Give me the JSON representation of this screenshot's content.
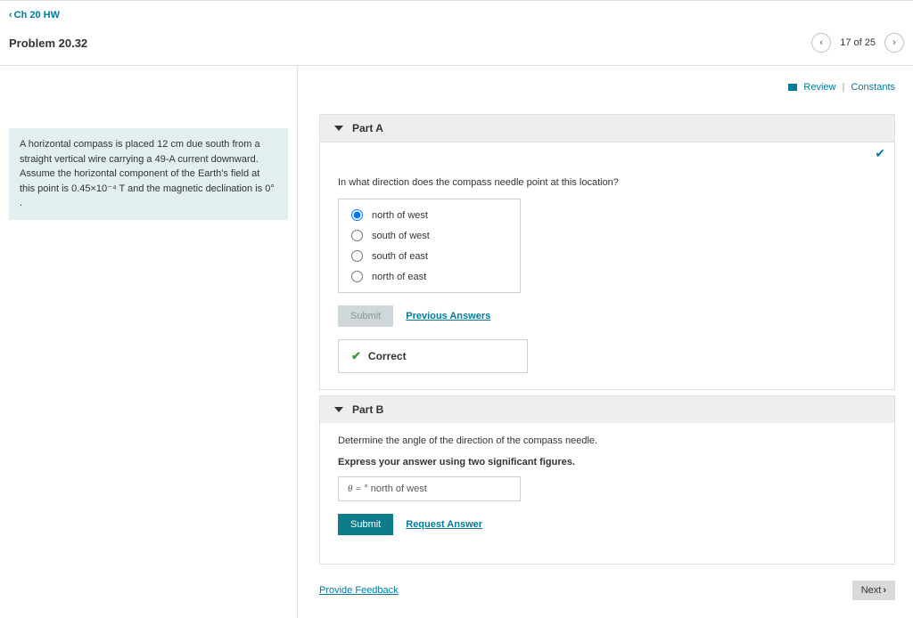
{
  "nav": {
    "back_label": "Ch 20 HW"
  },
  "header": {
    "problem_title": "Problem 20.32",
    "counter": "17 of 25"
  },
  "problem_statement": "A horizontal compass is placed 12  cm due south from a straight vertical wire carrying a 49-A current downward. Assume the horizontal component of the Earth's field at this point is 0.45×10⁻⁴  T and the magnetic declination is 0° .",
  "top_links": {
    "review": "Review",
    "constants": "Constants"
  },
  "part_a": {
    "title": "Part A",
    "question": "In what direction does the compass needle point at this location?",
    "options": [
      "north of west",
      "south of west",
      "south of east",
      "north of east"
    ],
    "selected_index": 0,
    "submit_label": "Submit",
    "prev_answers": "Previous Answers",
    "correct_label": "Correct"
  },
  "part_b": {
    "title": "Part B",
    "question": "Determine the angle of the direction of the compass needle.",
    "instruction": "Express your answer using two significant figures.",
    "answer_prefix": "θ = ",
    "answer_unit": "°  north of west",
    "submit_label": "Submit",
    "request_answer": "Request Answer"
  },
  "footer": {
    "feedback": "Provide Feedback",
    "next": "Next"
  },
  "colors": {
    "link": "#007a99",
    "panel": "#eceef0",
    "box_bg": "#e2eef0",
    "submit": "#0e7c8a",
    "correct": "#3a9a3a"
  }
}
